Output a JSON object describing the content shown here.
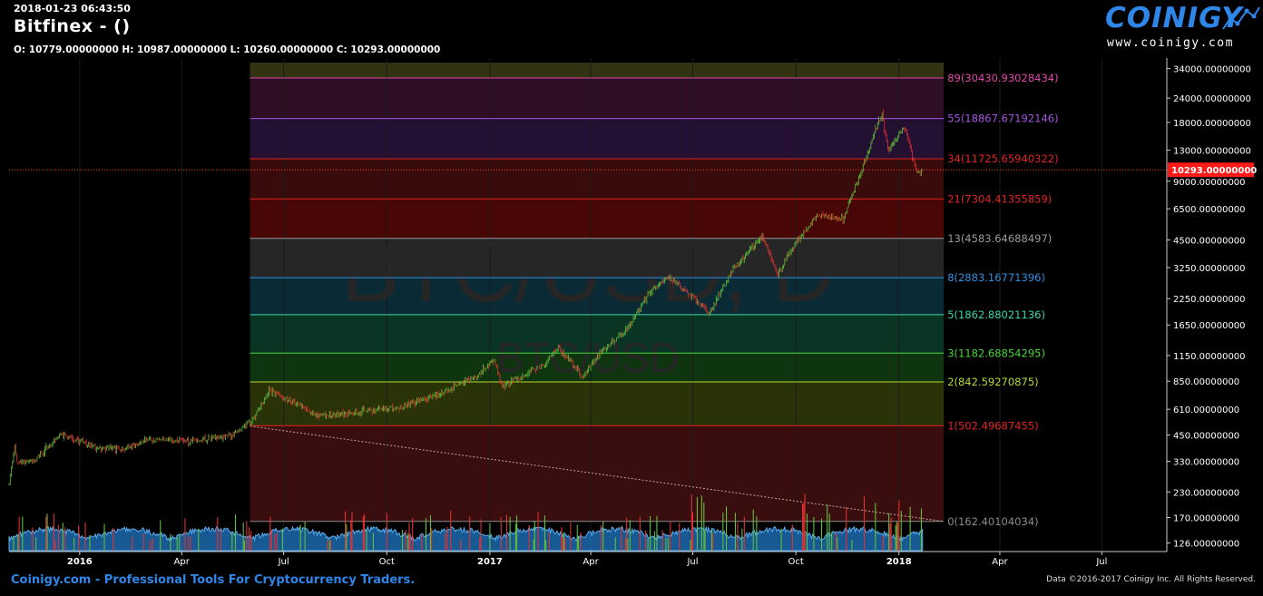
{
  "header": {
    "datetime": "2018-01-23 06:43:50",
    "title": "Bitfinex -  ()",
    "ohlc": "O: 10779.00000000 H: 10987.00000000 L: 10260.00000000 C: 10293.00000000"
  },
  "logo": {
    "text": "COINIGY",
    "url": "www.coinigy.com"
  },
  "watermark": {
    "main": "BTC/USD, D",
    "sub": "BTC/USD"
  },
  "footer": {
    "left": "Coinigy.com - Professional Tools For Cryptocurrency Traders.",
    "right": "Data ©2016-2017 Coinigy Inc. All Rights Reserved."
  },
  "colors": {
    "background": "#000000",
    "up_candle": "#5fbf3a",
    "down_candle": "#e03232",
    "volume_area": "#1f77c4",
    "price_line": "#ff3333",
    "logo": "#2e86e8"
  },
  "chart_data": {
    "type": "candlestick",
    "exchange": "Bitfinex",
    "scale": "log",
    "ylim": [
      115,
      38500
    ],
    "last_price": "10293.00000000",
    "y_ticks": [
      34000,
      24000,
      18000,
      13000,
      9000,
      6500,
      4500,
      3250,
      2250,
      1650,
      1150,
      850,
      610,
      450,
      330,
      230,
      170,
      126
    ],
    "y_tick_labels": [
      "34000.00000000",
      "24000.00000000",
      "18000.00000000",
      "13000.00000000",
      "9000.00000000",
      "6500.00000000",
      "4500.00000000",
      "3250.00000000",
      "2250.00000000",
      "1650.00000000",
      "1150.00000000",
      "850.00000000",
      "610.00000000",
      "450.00000000",
      "330.00000000",
      "230.00000000",
      "170.00000000",
      "126.00000000"
    ],
    "x_range": [
      "2015-10-30",
      "2018-08-28"
    ],
    "x_ticks": [
      {
        "date": "2016-01-01",
        "label": "2016",
        "bold": true
      },
      {
        "date": "2016-04-01",
        "label": "Apr",
        "bold": false
      },
      {
        "date": "2016-07-01",
        "label": "Jul",
        "bold": false
      },
      {
        "date": "2016-10-01",
        "label": "Oct",
        "bold": false
      },
      {
        "date": "2017-01-01",
        "label": "2017",
        "bold": true
      },
      {
        "date": "2017-04-01",
        "label": "Apr",
        "bold": false
      },
      {
        "date": "2017-07-01",
        "label": "Jul",
        "bold": false
      },
      {
        "date": "2017-10-01",
        "label": "Oct",
        "bold": false
      },
      {
        "date": "2018-01-01",
        "label": "2018",
        "bold": true
      },
      {
        "date": "2018-04-01",
        "label": "Apr",
        "bold": false
      },
      {
        "date": "2018-07-01",
        "label": "Jul",
        "bold": false
      }
    ],
    "price_path": [
      [
        "2015-10-30",
        250
      ],
      [
        "2015-11-04",
        400
      ],
      [
        "2015-11-06",
        330
      ],
      [
        "2015-11-20",
        330
      ],
      [
        "2015-12-15",
        450
      ],
      [
        "2016-01-15",
        390
      ],
      [
        "2016-02-10",
        380
      ],
      [
        "2016-03-01",
        430
      ],
      [
        "2016-04-10",
        420
      ],
      [
        "2016-05-15",
        450
      ],
      [
        "2016-06-01",
        520
      ],
      [
        "2016-06-12",
        650
      ],
      [
        "2016-06-18",
        760
      ],
      [
        "2016-07-10",
        660
      ],
      [
        "2016-08-02",
        560
      ],
      [
        "2016-09-01",
        590
      ],
      [
        "2016-10-15",
        630
      ],
      [
        "2016-11-20",
        740
      ],
      [
        "2016-12-20",
        900
      ],
      [
        "2017-01-04",
        1100
      ],
      [
        "2017-01-12",
        800
      ],
      [
        "2017-02-20",
        1050
      ],
      [
        "2017-03-03",
        1270
      ],
      [
        "2017-03-25",
        900
      ],
      [
        "2017-04-10",
        1200
      ],
      [
        "2017-05-05",
        1600
      ],
      [
        "2017-05-25",
        2500
      ],
      [
        "2017-06-10",
        2900
      ],
      [
        "2017-06-20",
        2600
      ],
      [
        "2017-07-16",
        1900
      ],
      [
        "2017-08-06",
        3200
      ],
      [
        "2017-09-01",
        4700
      ],
      [
        "2017-09-15",
        3000
      ],
      [
        "2017-10-01",
        4400
      ],
      [
        "2017-10-20",
        6000
      ],
      [
        "2017-11-12",
        5800
      ],
      [
        "2017-11-28",
        9900
      ],
      [
        "2017-12-10",
        16000
      ],
      [
        "2017-12-17",
        19800
      ],
      [
        "2017-12-22",
        13000
      ],
      [
        "2018-01-06",
        17000
      ],
      [
        "2018-01-17",
        10000
      ],
      [
        "2018-01-22",
        10293
      ]
    ],
    "fib_box": {
      "start": "2016-06-01",
      "end": "2018-02-10"
    },
    "fib_levels": [
      {
        "label": "0(162.40104034)",
        "value": 162.40104034,
        "color": "#8a8a8a"
      },
      {
        "label": "1(502.49687455)",
        "value": 502.49687455,
        "color": "#e02424"
      },
      {
        "label": "2(842.59270875)",
        "value": 842.59270875,
        "color": "#b8d830"
      },
      {
        "label": "3(1182.68854295)",
        "value": 1182.68854295,
        "color": "#4ad43a"
      },
      {
        "label": "5(1862.88021136)",
        "value": 1862.88021136,
        "color": "#39d6a8"
      },
      {
        "label": "8(2883.16771396)",
        "value": 2883.16771396,
        "color": "#2f8fe0"
      },
      {
        "label": "13(4583.64688497)",
        "value": 4583.64688497,
        "color": "#9a9a9a"
      },
      {
        "label": "21(7304.41355859)",
        "value": 7304.41355859,
        "color": "#e02424"
      },
      {
        "label": "34(11725.65940322)",
        "value": 11725.65940322,
        "color": "#e02424"
      },
      {
        "label": "55(18867.67192146)",
        "value": 18867.67192146,
        "color": "#a654e0"
      },
      {
        "label": "89(30430.93028434)",
        "value": 30430.93028434,
        "color": "#e04aa8"
      }
    ],
    "fib_bands": [
      {
        "from": 162.40104034,
        "to": 502.49687455,
        "color": "#3a0e0e"
      },
      {
        "from": 502.49687455,
        "to": 842.59270875,
        "color": "#2a3308"
      },
      {
        "from": 842.59270875,
        "to": 1182.68854295,
        "color": "#0f3510"
      },
      {
        "from": 1182.68854295,
        "to": 1862.88021136,
        "color": "#0a3524"
      },
      {
        "from": 1862.88021136,
        "to": 2883.16771396,
        "color": "#0a2b35"
      },
      {
        "from": 2883.16771396,
        "to": 4583.64688497,
        "color": "#262626"
      },
      {
        "from": 4583.64688497,
        "to": 7304.41355859,
        "color": "#480606"
      },
      {
        "from": 7304.41355859,
        "to": 11725.65940322,
        "color": "#3a0b0b"
      },
      {
        "from": 11725.65940322,
        "to": 18867.67192146,
        "color": "#241032"
      },
      {
        "from": 18867.67192146,
        "to": 30430.93028434,
        "color": "#2e0e24"
      },
      {
        "from": 30430.93028434,
        "to": 36500,
        "color": "#313313"
      }
    ],
    "trend_line": [
      [
        "2016-06-01",
        500
      ],
      [
        "2018-02-10",
        162.4
      ]
    ]
  }
}
